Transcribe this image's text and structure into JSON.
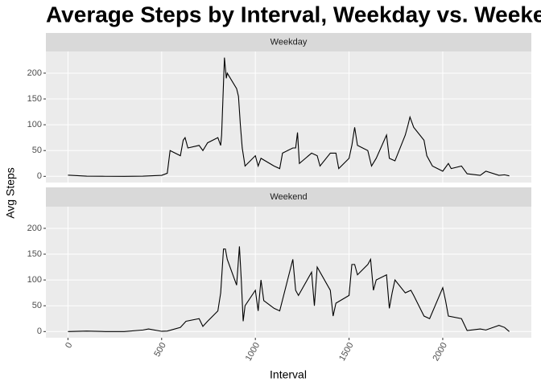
{
  "title": "Average Steps by Interval, Weekday vs. Weekend",
  "x_label": "Interval",
  "y_label": "Avg Steps",
  "chart_data": [
    {
      "type": "line",
      "facet": "Weekday",
      "color": "#000000",
      "x": [
        0,
        100,
        200,
        300,
        400,
        500,
        530,
        545,
        600,
        615,
        625,
        640,
        700,
        720,
        745,
        800,
        815,
        820,
        830,
        835,
        845,
        850,
        900,
        910,
        920,
        930,
        945,
        1000,
        1015,
        1030,
        1100,
        1130,
        1145,
        1200,
        1215,
        1225,
        1235,
        1300,
        1330,
        1345,
        1400,
        1430,
        1445,
        1500,
        1515,
        1530,
        1545,
        1600,
        1620,
        1645,
        1700,
        1715,
        1745,
        1800,
        1815,
        1825,
        1845,
        1900,
        1915,
        1930,
        1945,
        2000,
        2030,
        2045,
        2100,
        2130,
        2200,
        2230,
        2300,
        2330,
        2355
      ],
      "values": [
        2.3,
        0.4,
        0.1,
        0,
        0.3,
        2,
        6,
        50,
        40,
        70,
        75,
        55,
        60,
        50,
        65,
        75,
        60,
        80,
        180,
        230,
        190,
        200,
        170,
        155,
        100,
        55,
        20,
        40,
        20,
        35,
        20,
        15,
        45,
        55,
        55,
        85,
        25,
        45,
        40,
        20,
        45,
        45,
        15,
        35,
        60,
        95,
        60,
        50,
        20,
        35,
        80,
        35,
        30,
        80,
        100,
        115,
        95,
        70,
        40,
        30,
        20,
        10,
        25,
        15,
        20,
        5,
        2,
        10,
        2,
        3,
        1
      ],
      "xlim": [
        -117.75,
        2472.75
      ],
      "xticks": [
        0,
        500,
        1000,
        1500,
        2000
      ],
      "ylim": [
        -12,
        242
      ],
      "yticks": [
        0,
        50,
        100,
        150,
        200
      ],
      "grid": true
    },
    {
      "type": "line",
      "facet": "Weekend",
      "color": "#000000",
      "x": [
        0,
        100,
        200,
        300,
        400,
        430,
        500,
        530,
        600,
        630,
        700,
        720,
        745,
        800,
        815,
        830,
        840,
        850,
        900,
        915,
        925,
        935,
        945,
        1000,
        1015,
        1030,
        1045,
        1100,
        1130,
        1200,
        1215,
        1230,
        1300,
        1315,
        1330,
        1400,
        1415,
        1430,
        1500,
        1515,
        1530,
        1545,
        1600,
        1615,
        1630,
        1645,
        1700,
        1715,
        1730,
        1745,
        1800,
        1830,
        1845,
        1900,
        1930,
        2000,
        2015,
        2030,
        2100,
        2130,
        2200,
        2230,
        2300,
        2330,
        2355
      ],
      "values": [
        0,
        1,
        0,
        0,
        3,
        5,
        0.5,
        1,
        8,
        20,
        25,
        10,
        20,
        40,
        75,
        160,
        160,
        140,
        90,
        165,
        100,
        20,
        50,
        80,
        40,
        100,
        60,
        45,
        40,
        140,
        80,
        70,
        115,
        50,
        125,
        80,
        30,
        55,
        70,
        130,
        130,
        110,
        130,
        140,
        80,
        100,
        110,
        45,
        75,
        100,
        75,
        80,
        70,
        30,
        25,
        85,
        60,
        30,
        25,
        2,
        5,
        3,
        12,
        8,
        0
      ],
      "xlim": [
        -117.75,
        2472.75
      ],
      "xticks": [
        0,
        500,
        1000,
        1500,
        2000
      ],
      "ylim": [
        -12,
        242
      ],
      "yticks": [
        0,
        50,
        100,
        150,
        200
      ],
      "grid": true
    }
  ]
}
